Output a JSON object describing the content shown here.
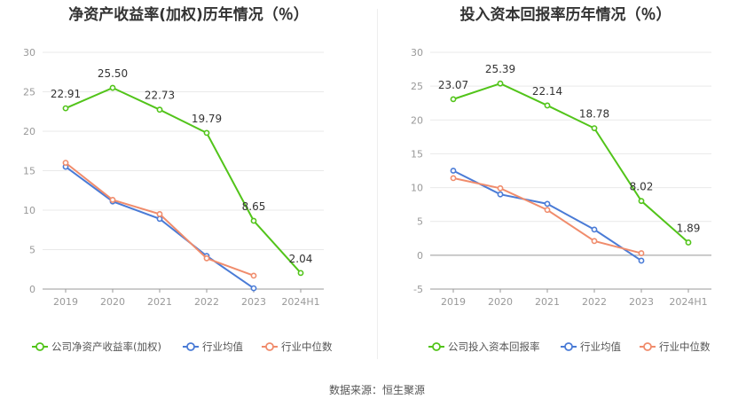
{
  "source": "数据来源：恒生聚源",
  "legend_colors": {
    "company": "#52c41a",
    "avg": "#4a7bd6",
    "median": "#f08c6c"
  },
  "chart_data": [
    {
      "type": "line",
      "title": "净资产收益率(加权)历年情况（％）",
      "categories": [
        "2019",
        "2020",
        "2021",
        "2022",
        "2023",
        "2024H1"
      ],
      "ylim": [
        0,
        30
      ],
      "yticks": [
        0,
        5,
        10,
        15,
        20,
        25,
        30
      ],
      "legend_position": "bottom-left",
      "series": [
        {
          "name": "公司净资产收益率(加权)",
          "color": "#52c41a",
          "values": [
            22.91,
            25.5,
            22.73,
            19.79,
            8.65,
            2.04
          ],
          "labels": [
            "22.91",
            "25.50",
            "22.73",
            "19.79",
            "8.65",
            "2.04"
          ]
        },
        {
          "name": "行业均值",
          "color": "#4a7bd6",
          "values": [
            15.5,
            11.1,
            8.9,
            4.2,
            0.1,
            null
          ]
        },
        {
          "name": "行业中位数",
          "color": "#f08c6c",
          "values": [
            16.0,
            11.3,
            9.5,
            3.9,
            1.7,
            null
          ]
        }
      ]
    },
    {
      "type": "line",
      "title": "投入资本回报率历年情况（％）",
      "categories": [
        "2019",
        "2020",
        "2021",
        "2022",
        "2023",
        "2024H1"
      ],
      "ylim": [
        -5,
        30
      ],
      "yticks": [
        -5,
        0,
        5,
        10,
        15,
        20,
        25,
        30
      ],
      "legend_position": "bottom-left",
      "series": [
        {
          "name": "公司投入资本回报率",
          "color": "#52c41a",
          "values": [
            23.07,
            25.39,
            22.14,
            18.78,
            8.02,
            1.89
          ],
          "labels": [
            "23.07",
            "25.39",
            "22.14",
            "18.78",
            "8.02",
            "1.89"
          ]
        },
        {
          "name": "行业均值",
          "color": "#4a7bd6",
          "values": [
            12.5,
            9.0,
            7.6,
            3.8,
            -0.8,
            null
          ]
        },
        {
          "name": "行业中位数",
          "color": "#f08c6c",
          "values": [
            11.4,
            9.9,
            6.7,
            2.1,
            0.3,
            null
          ]
        }
      ]
    }
  ]
}
